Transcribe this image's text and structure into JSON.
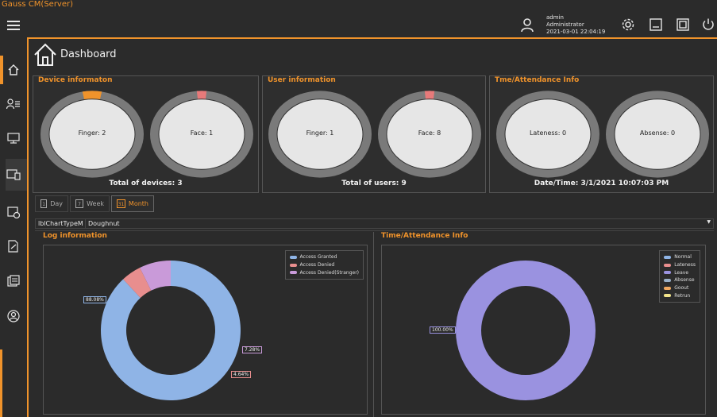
{
  "app": {
    "title": "Gauss CM(Server)"
  },
  "header": {
    "user_name": "admin",
    "user_role": "Administrator",
    "datetime": "2021-03-01 22:04:19"
  },
  "page": {
    "title": "Dashboard"
  },
  "device_panel": {
    "title": "Device informaton",
    "rings": [
      {
        "label": "Finger: 2",
        "accent": "#f0932b",
        "fill": 0.02
      },
      {
        "label": "Face: 1",
        "accent": "#e77a7a",
        "fill": 0.01
      }
    ],
    "footer": "Total of devices: 3"
  },
  "user_panel": {
    "title": "User information",
    "rings": [
      {
        "label": "Finger: 1",
        "accent": "#f0932b",
        "fill": 0.0
      },
      {
        "label": "Face: 8",
        "accent": "#e77a7a",
        "fill": 0.01
      }
    ],
    "footer": "Total of users: 9"
  },
  "time_panel": {
    "title": "Tme/Attendance Info",
    "rings": [
      {
        "label": "Lateness: 0",
        "accent": "#f0932b",
        "fill": 0.0
      },
      {
        "label": "Absense: 0",
        "accent": "#e77a7a",
        "fill": 0.0
      }
    ],
    "footer": "Date/Time: 3/1/2021 10:07:03 PM"
  },
  "tabs": [
    {
      "label": "Day",
      "icon": "1",
      "active": false
    },
    {
      "label": "Week",
      "icon": "7",
      "active": false
    },
    {
      "label": "Month",
      "icon": "31",
      "active": true
    }
  ],
  "chart_type": {
    "label": "lblChartTypeM",
    "value": "Doughnut"
  },
  "chart_data": [
    {
      "type": "pie",
      "title": "Log information",
      "series": [
        {
          "name": "Access Granted",
          "value": 88.08,
          "label": "88.08%",
          "color": "#8fb4e6"
        },
        {
          "name": "Access Denied",
          "value": 4.64,
          "label": "4.64%",
          "color": "#e88e8e"
        },
        {
          "name": "Access Denied(Stranger)",
          "value": 7.28,
          "label": "7.28%",
          "color": "#c99ad9"
        }
      ],
      "legend": "top-right"
    },
    {
      "type": "pie",
      "title": "Time/Attendance Info",
      "series": [
        {
          "name": "Normal",
          "value": 0,
          "color": "#8fb4e6"
        },
        {
          "name": "Lateness",
          "value": 0,
          "color": "#e88e8e"
        },
        {
          "name": "Leave",
          "value": 100.0,
          "label": "100.00%",
          "color": "#9a92e0"
        },
        {
          "name": "Absense",
          "value": 0,
          "color": "#9ab0c8"
        },
        {
          "name": "Goout",
          "value": 0,
          "color": "#f0a860"
        },
        {
          "name": "Retrun",
          "value": 0,
          "color": "#f2e48a"
        }
      ],
      "legend": "top-right"
    }
  ]
}
